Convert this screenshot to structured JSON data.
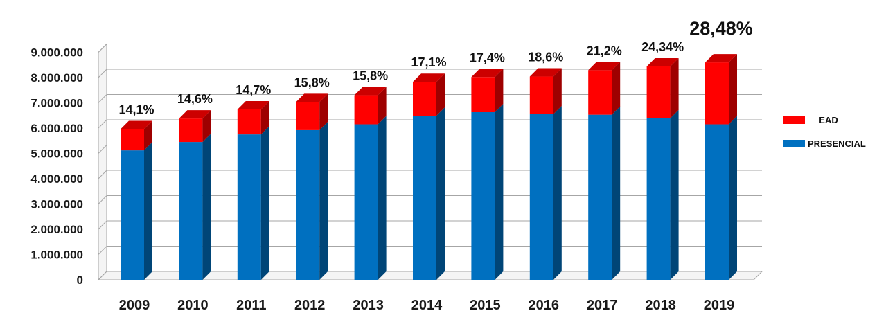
{
  "chart_data": {
    "type": "bar",
    "stacked": true,
    "categories": [
      "2009",
      "2010",
      "2011",
      "2012",
      "2013",
      "2014",
      "2015",
      "2016",
      "2017",
      "2018",
      "2019"
    ],
    "series": [
      {
        "name": "PRESENCIAL",
        "color": "#0070c0",
        "values": [
          5120000,
          5450000,
          5750000,
          5920000,
          6150000,
          6490000,
          6630000,
          6550000,
          6530000,
          6390000,
          6150000
        ]
      },
      {
        "name": "EAD",
        "color": "#ff0000",
        "values": [
          840000,
          930000,
          990000,
          1110000,
          1150000,
          1340000,
          1390000,
          1490000,
          1760000,
          2050000,
          2450000
        ]
      }
    ],
    "data_labels": [
      "14,1%",
      "14,6%",
      "14,7%",
      "15,8%",
      "15,8%",
      "17,1%",
      "17,4%",
      "18,6%",
      "21,2%",
      "24,34%",
      "28,48%"
    ],
    "y_ticks": [
      "0",
      "1.000.000",
      "2.000.000",
      "3.000.000",
      "4.000.000",
      "5.000.000",
      "6.000.000",
      "7.000.000",
      "8.000.000",
      "9.000.000"
    ],
    "ylim": [
      0,
      9000000
    ],
    "grid": true,
    "legend_position": "right",
    "style": "3d"
  }
}
